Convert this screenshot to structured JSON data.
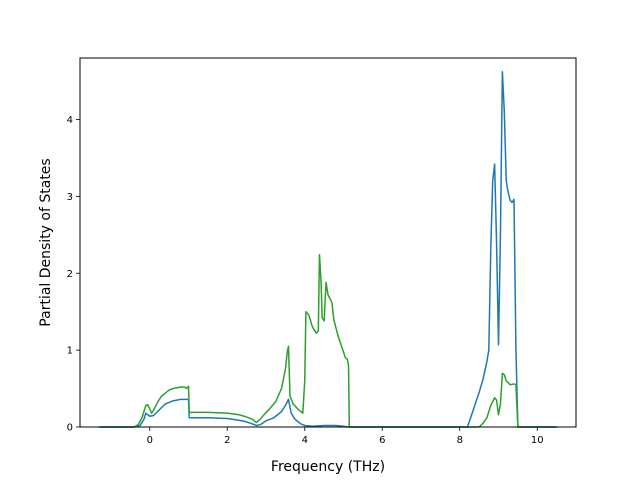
{
  "chart_data": {
    "type": "line",
    "title": "",
    "xlabel": "Frequency (THz)",
    "ylabel": "Partial Density of States",
    "xlim": [
      -1.8,
      11.0
    ],
    "ylim": [
      0,
      4.8
    ],
    "xticks": [
      0,
      2,
      4,
      6,
      8,
      10
    ],
    "yticks": [
      0,
      1,
      2,
      3,
      4
    ],
    "grid": false,
    "legend": "none",
    "series": [
      {
        "color": "#1f77b4",
        "points": [
          [
            -1.3,
            0
          ],
          [
            -0.4,
            0
          ],
          [
            -0.25,
            0.02
          ],
          [
            -0.15,
            0.1
          ],
          [
            -0.1,
            0.18
          ],
          [
            0,
            0.14
          ],
          [
            0.1,
            0.15
          ],
          [
            0.2,
            0.2
          ],
          [
            0.3,
            0.25
          ],
          [
            0.4,
            0.3
          ],
          [
            0.5,
            0.32
          ],
          [
            0.6,
            0.34
          ],
          [
            0.7,
            0.35
          ],
          [
            0.8,
            0.36
          ],
          [
            0.9,
            0.36
          ],
          [
            1.0,
            0.36
          ],
          [
            1.02,
            0.12
          ],
          [
            1.5,
            0.12
          ],
          [
            2.0,
            0.11
          ],
          [
            2.4,
            0.08
          ],
          [
            2.6,
            0.05
          ],
          [
            2.75,
            0.02
          ],
          [
            2.85,
            0.03
          ],
          [
            3.0,
            0.08
          ],
          [
            3.2,
            0.12
          ],
          [
            3.4,
            0.2
          ],
          [
            3.5,
            0.28
          ],
          [
            3.58,
            0.36
          ],
          [
            3.65,
            0.18
          ],
          [
            3.75,
            0.1
          ],
          [
            3.9,
            0.04
          ],
          [
            4.0,
            0.02
          ],
          [
            4.2,
            0.01
          ],
          [
            4.5,
            0.02
          ],
          [
            4.8,
            0.02
          ],
          [
            5.0,
            0.01
          ],
          [
            5.1,
            0.0
          ],
          [
            5.5,
            0.0
          ],
          [
            8.2,
            0.0
          ],
          [
            8.3,
            0.15
          ],
          [
            8.4,
            0.3
          ],
          [
            8.5,
            0.45
          ],
          [
            8.6,
            0.62
          ],
          [
            8.7,
            0.85
          ],
          [
            8.75,
            1.0
          ],
          [
            8.8,
            2.3
          ],
          [
            8.85,
            3.2
          ],
          [
            8.9,
            3.42
          ],
          [
            8.95,
            2.4
          ],
          [
            9.0,
            1.07
          ],
          [
            9.05,
            2.5
          ],
          [
            9.1,
            4.62
          ],
          [
            9.15,
            4.1
          ],
          [
            9.2,
            3.2
          ],
          [
            9.25,
            3.05
          ],
          [
            9.3,
            2.95
          ],
          [
            9.35,
            2.92
          ],
          [
            9.4,
            2.96
          ],
          [
            9.45,
            1.0
          ],
          [
            9.5,
            0.0
          ],
          [
            10.5,
            0.0
          ]
        ]
      },
      {
        "color": "#2ca02c",
        "points": [
          [
            -1.3,
            0
          ],
          [
            -0.4,
            0
          ],
          [
            -0.3,
            0.03
          ],
          [
            -0.2,
            0.12
          ],
          [
            -0.1,
            0.28
          ],
          [
            -0.05,
            0.29
          ],
          [
            0.05,
            0.18
          ],
          [
            0.1,
            0.22
          ],
          [
            0.2,
            0.32
          ],
          [
            0.3,
            0.4
          ],
          [
            0.4,
            0.44
          ],
          [
            0.5,
            0.48
          ],
          [
            0.6,
            0.5
          ],
          [
            0.7,
            0.51
          ],
          [
            0.8,
            0.52
          ],
          [
            0.9,
            0.52
          ],
          [
            0.95,
            0.5
          ],
          [
            1.0,
            0.53
          ],
          [
            1.02,
            0.19
          ],
          [
            1.5,
            0.19
          ],
          [
            2.0,
            0.18
          ],
          [
            2.3,
            0.16
          ],
          [
            2.5,
            0.13
          ],
          [
            2.65,
            0.1
          ],
          [
            2.75,
            0.06
          ],
          [
            2.85,
            0.1
          ],
          [
            2.95,
            0.16
          ],
          [
            3.1,
            0.24
          ],
          [
            3.25,
            0.33
          ],
          [
            3.4,
            0.5
          ],
          [
            3.5,
            0.75
          ],
          [
            3.55,
            0.98
          ],
          [
            3.58,
            1.05
          ],
          [
            3.62,
            0.4
          ],
          [
            3.7,
            0.3
          ],
          [
            3.85,
            0.22
          ],
          [
            3.95,
            0.18
          ],
          [
            4.0,
            0.6
          ],
          [
            4.03,
            1.5
          ],
          [
            4.1,
            1.46
          ],
          [
            4.15,
            1.38
          ],
          [
            4.2,
            1.3
          ],
          [
            4.3,
            1.22
          ],
          [
            4.35,
            1.25
          ],
          [
            4.38,
            2.24
          ],
          [
            4.42,
            1.9
          ],
          [
            4.45,
            1.42
          ],
          [
            4.5,
            1.38
          ],
          [
            4.55,
            1.88
          ],
          [
            4.6,
            1.72
          ],
          [
            4.7,
            1.62
          ],
          [
            4.75,
            1.4
          ],
          [
            4.85,
            1.2
          ],
          [
            4.95,
            1.05
          ],
          [
            5.05,
            0.9
          ],
          [
            5.1,
            0.88
          ],
          [
            5.13,
            0.8
          ],
          [
            5.15,
            0.0
          ],
          [
            8.5,
            0.0
          ],
          [
            8.6,
            0.05
          ],
          [
            8.7,
            0.12
          ],
          [
            8.8,
            0.28
          ],
          [
            8.9,
            0.38
          ],
          [
            8.95,
            0.35
          ],
          [
            9.0,
            0.16
          ],
          [
            9.05,
            0.3
          ],
          [
            9.1,
            0.7
          ],
          [
            9.15,
            0.68
          ],
          [
            9.2,
            0.6
          ],
          [
            9.3,
            0.55
          ],
          [
            9.4,
            0.56
          ],
          [
            9.45,
            0.55
          ],
          [
            9.5,
            0.0
          ],
          [
            10.5,
            0.0
          ]
        ]
      }
    ]
  }
}
